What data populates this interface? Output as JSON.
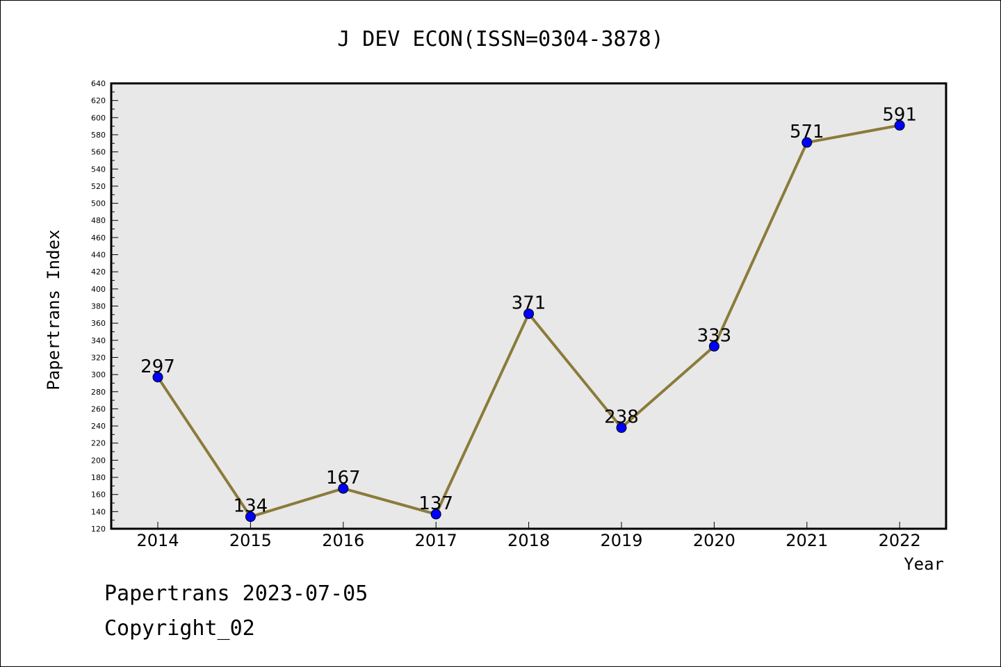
{
  "chart_data": {
    "type": "line",
    "title": "J DEV ECON(ISSN=0304-3878)",
    "xlabel": "Year",
    "ylabel": "Papertrans Index",
    "categories": [
      "2014",
      "2015",
      "2016",
      "2017",
      "2018",
      "2019",
      "2020",
      "2021",
      "2022"
    ],
    "series": [
      {
        "values": [
          297,
          134,
          167,
          137,
          371,
          238,
          333,
          571,
          591
        ]
      }
    ],
    "data_labels": [
      "297",
      "134",
      "167",
      "137",
      "371",
      "238",
      "333",
      "571",
      "591"
    ],
    "ylim": [
      120,
      640
    ],
    "y_ticks": [
      120,
      140,
      160,
      180,
      200,
      220,
      240,
      260,
      280,
      300,
      320,
      340,
      360,
      380,
      400,
      420,
      440,
      460,
      480,
      500,
      520,
      540,
      560,
      580,
      600,
      620,
      640
    ],
    "grid": false,
    "legend": "none",
    "colors": {
      "line": "#8B7B3A",
      "marker": "#0000FF",
      "plot_background": "#E8E8E8"
    }
  },
  "footer": {
    "line1": "Papertrans 2023-07-05",
    "line2": "Copyright_02"
  }
}
